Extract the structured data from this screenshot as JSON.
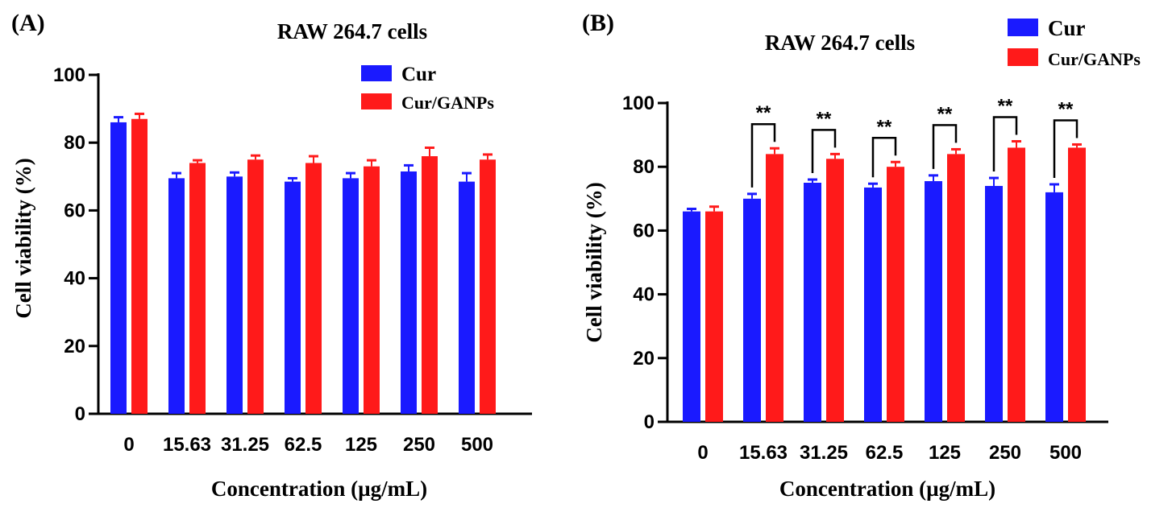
{
  "figure": {
    "colors": {
      "cur": "#1a1aff",
      "cur_ganps": "#ff1a1a",
      "axis": "#000000"
    }
  },
  "chart_data": [
    {
      "type": "bar",
      "panel": "(A)",
      "title": "RAW 264.7 cells",
      "xlabel": "Concentration (µg/mL)",
      "ylabel": "Cell viability (%)",
      "categories": [
        "0",
        "15.63",
        "31.25",
        "62.5",
        "125",
        "250",
        "500"
      ],
      "ylim": [
        0,
        100
      ],
      "yticks": [
        "0",
        "20",
        "40",
        "60",
        "80",
        "100"
      ],
      "legend_position": "top-right",
      "series": [
        {
          "name": "Cur",
          "values": [
            86,
            69.5,
            70,
            68.5,
            69.5,
            71.5,
            68.5
          ],
          "errors": [
            1.5,
            1.5,
            1.2,
            1.0,
            1.5,
            1.8,
            2.5
          ]
        },
        {
          "name": "Cur/GANPs",
          "values": [
            87,
            74,
            75,
            74,
            73,
            76,
            75
          ],
          "errors": [
            1.5,
            0.8,
            1.2,
            2.0,
            1.8,
            2.5,
            1.5
          ]
        }
      ],
      "significance": []
    },
    {
      "type": "bar",
      "panel": "(B)",
      "title": "RAW 264.7 cells",
      "xlabel": "Concentration (µg/mL)",
      "ylabel": "Cell viability (%)",
      "categories": [
        "0",
        "15.63",
        "31.25",
        "62.5",
        "125",
        "250",
        "500"
      ],
      "ylim": [
        0,
        100
      ],
      "yticks": [
        "0",
        "20",
        "40",
        "60",
        "80",
        "100"
      ],
      "legend_position": "top-right",
      "series": [
        {
          "name": "Cur",
          "values": [
            66,
            70,
            75,
            73.5,
            75.5,
            74,
            72
          ],
          "errors": [
            0.8,
            1.5,
            1.0,
            1.2,
            1.8,
            2.5,
            2.5
          ]
        },
        {
          "name": "Cur/GANPs",
          "values": [
            66,
            84,
            82.5,
            80,
            84,
            86,
            86
          ],
          "errors": [
            1.5,
            1.8,
            1.5,
            1.5,
            1.5,
            2.0,
            1.0
          ]
        }
      ],
      "significance": [
        "**",
        "**",
        "**",
        "**",
        "**",
        "**"
      ]
    }
  ]
}
